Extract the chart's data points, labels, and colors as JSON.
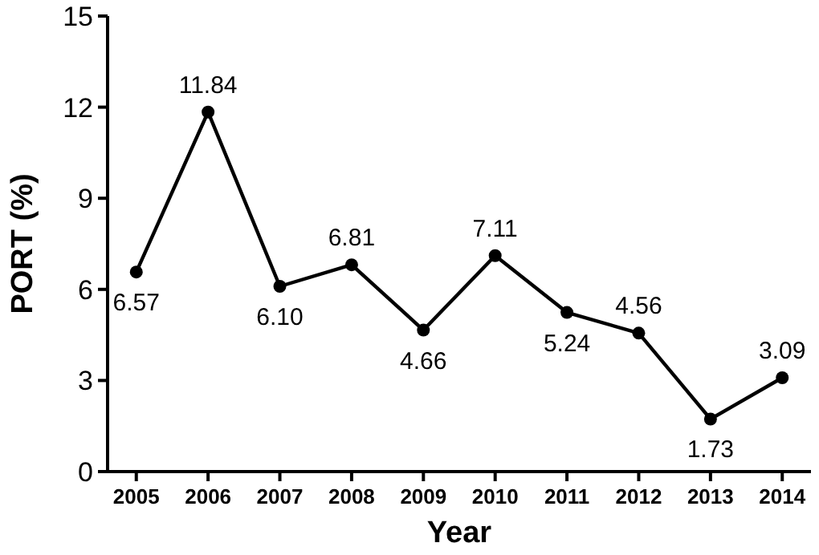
{
  "chart_data": {
    "type": "line",
    "xlabel": "Year",
    "ylabel": "PORT (%)",
    "categories": [
      "2005",
      "2006",
      "2007",
      "2008",
      "2009",
      "2010",
      "2011",
      "2012",
      "2013",
      "2014"
    ],
    "series": [
      {
        "color": "#000000",
        "values": [
          6.57,
          11.84,
          6.1,
          6.81,
          4.66,
          7.11,
          5.24,
          4.56,
          1.73,
          3.09
        ],
        "value_labels": [
          "6.57",
          "11.84",
          "6.10",
          "6.81",
          "4.66",
          "7.11",
          "5.24",
          "4.56",
          "1.73",
          "3.09"
        ]
      }
    ],
    "ylim": [
      0,
      15
    ],
    "yticks": [
      0,
      3,
      6,
      9,
      12,
      15
    ],
    "marker": "circle",
    "line_style": "solid"
  }
}
